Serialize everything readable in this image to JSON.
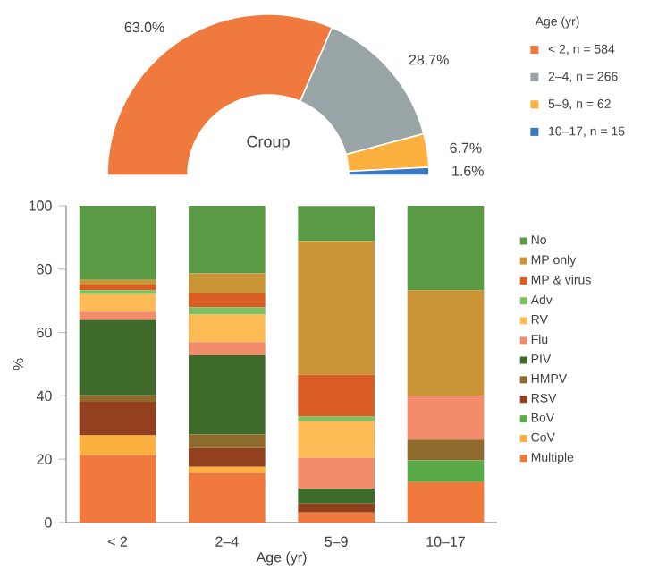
{
  "chart_data": [
    {
      "type": "donut",
      "title": "Croup",
      "legend_title": "Age (yr)",
      "legend": "right",
      "categories": [
        "< 2, n = 584",
        "2–4, n = 266",
        "5–9, n = 62",
        "10–17, n = 15"
      ],
      "values": [
        63.0,
        28.7,
        6.7,
        1.6
      ],
      "value_labels": [
        "63.0%",
        "28.7%",
        "6.7%",
        "1.6%"
      ],
      "colors": [
        "#f07a3e",
        "#98a4a6",
        "#fbb040",
        "#3a78c0"
      ]
    },
    {
      "type": "bar",
      "stacked": true,
      "xlabel": "Age (yr)",
      "ylabel": "%",
      "legend": "right",
      "categories": [
        "< 2",
        "2–4",
        "5–9",
        "10–17"
      ],
      "ylim": [
        0,
        100
      ],
      "yticks": [
        0,
        20,
        40,
        60,
        80,
        100
      ],
      "series": [
        {
          "name": "Multiple",
          "color": "#f07a3e",
          "values": [
            21.3,
            15.7,
            3.2,
            12.8
          ]
        },
        {
          "name": "CoV",
          "color": "#fbb040",
          "values": [
            6.2,
            1.9,
            0,
            0
          ]
        },
        {
          "name": "BoV",
          "color": "#5aaa48",
          "values": [
            0,
            0,
            0,
            6.8
          ]
        },
        {
          "name": "RSV",
          "color": "#93401e",
          "values": [
            10.6,
            6.0,
            2.8,
            0
          ]
        },
        {
          "name": "HMPV",
          "color": "#8e6b2d",
          "values": [
            2.1,
            4.3,
            0,
            6.6
          ]
        },
        {
          "name": "PIV",
          "color": "#3e6b2c",
          "values": [
            23.8,
            24.9,
            4.7,
            0
          ]
        },
        {
          "name": "Flu",
          "color": "#f28c6a",
          "values": [
            2.6,
            4.2,
            9.8,
            13.8
          ]
        },
        {
          "name": "RV",
          "color": "#fdbb55",
          "values": [
            5.5,
            8.7,
            11.5,
            0
          ]
        },
        {
          "name": "Adv",
          "color": "#7cc162",
          "values": [
            1.3,
            2.3,
            1.5,
            0
          ]
        },
        {
          "name": "MP & virus",
          "color": "#da5d26",
          "values": [
            1.7,
            4.3,
            13.2,
            0
          ]
        },
        {
          "name": "MP only",
          "color": "#c99537",
          "values": [
            1.5,
            6.4,
            42.1,
            33.4
          ]
        },
        {
          "name": "No",
          "color": "#5a9a45",
          "values": [
            23.4,
            21.3,
            11.1,
            26.6
          ]
        }
      ]
    }
  ]
}
